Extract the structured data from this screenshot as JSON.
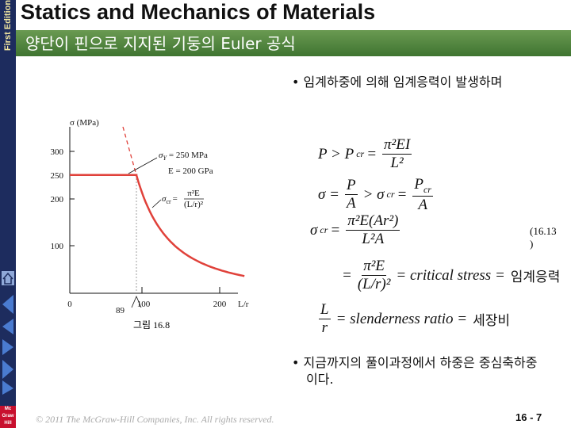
{
  "sidebar": {
    "edition": "First Edition",
    "logo": [
      "Mc",
      "Graw",
      "Hill"
    ]
  },
  "header": {
    "title": "Statics and Mechanics of Materials",
    "subtitle": "양단이 핀으로 지지된 기둥의 Euler 공식"
  },
  "bullets": [
    "임계하중에 의해 임계응력이 발생하며",
    "지금까지의 풀이과정에서 하중은 중심축하중이다."
  ],
  "equations": [
    [
      {
        "t": "P > P"
      },
      {
        "sub": "cr"
      },
      {
        "t": "="
      },
      {
        "num": "π²EI",
        "den": "L²"
      }
    ],
    [
      {
        "t": "σ ="
      },
      {
        "num": "P",
        "den": "A"
      },
      {
        "t": "> σ"
      },
      {
        "sub": "cr"
      },
      {
        "t": "="
      },
      {
        "num": "P",
        "num_sub": "cr",
        "den": "A"
      }
    ],
    [
      {
        "t": "σ"
      },
      {
        "sub": "cr"
      },
      {
        "t": "="
      },
      {
        "num": "π²E(Ar²)",
        "den": "L²A"
      }
    ],
    [
      {
        "t": "="
      },
      {
        "num": "π²E",
        "den": "(L/r)²"
      },
      {
        "t": "= critical stress ="
      },
      {
        "plain": "임계응력"
      }
    ],
    [
      {
        "num": "L",
        "den": "r"
      },
      {
        "t": "= slenderness ratio ="
      },
      {
        "plain": "세장비"
      }
    ]
  ],
  "equation_tag": "(16.13 )",
  "figure": {
    "y_label": "σ (MPa)",
    "yticks": [
      "300",
      "250",
      "200",
      "100"
    ],
    "xticks": [
      "0",
      "100",
      "200"
    ],
    "x_label": "L/r",
    "x_mark": "89",
    "yield_label": {
      "sym": "σ",
      "sub": "Y",
      "rest": "= 250 MPa"
    },
    "modulus_label": "E = 200 GPa",
    "curve_label": {
      "sym": "σ",
      "sub": "cr",
      "eq": "=",
      "num": "π²E",
      "den": "(L/r)²"
    },
    "caption": "그림 16.8"
  },
  "footer": {
    "copyright": "© 2011 The McGraw-Hill Companies, Inc. All rights reserved.",
    "page": "16 - 7"
  }
}
